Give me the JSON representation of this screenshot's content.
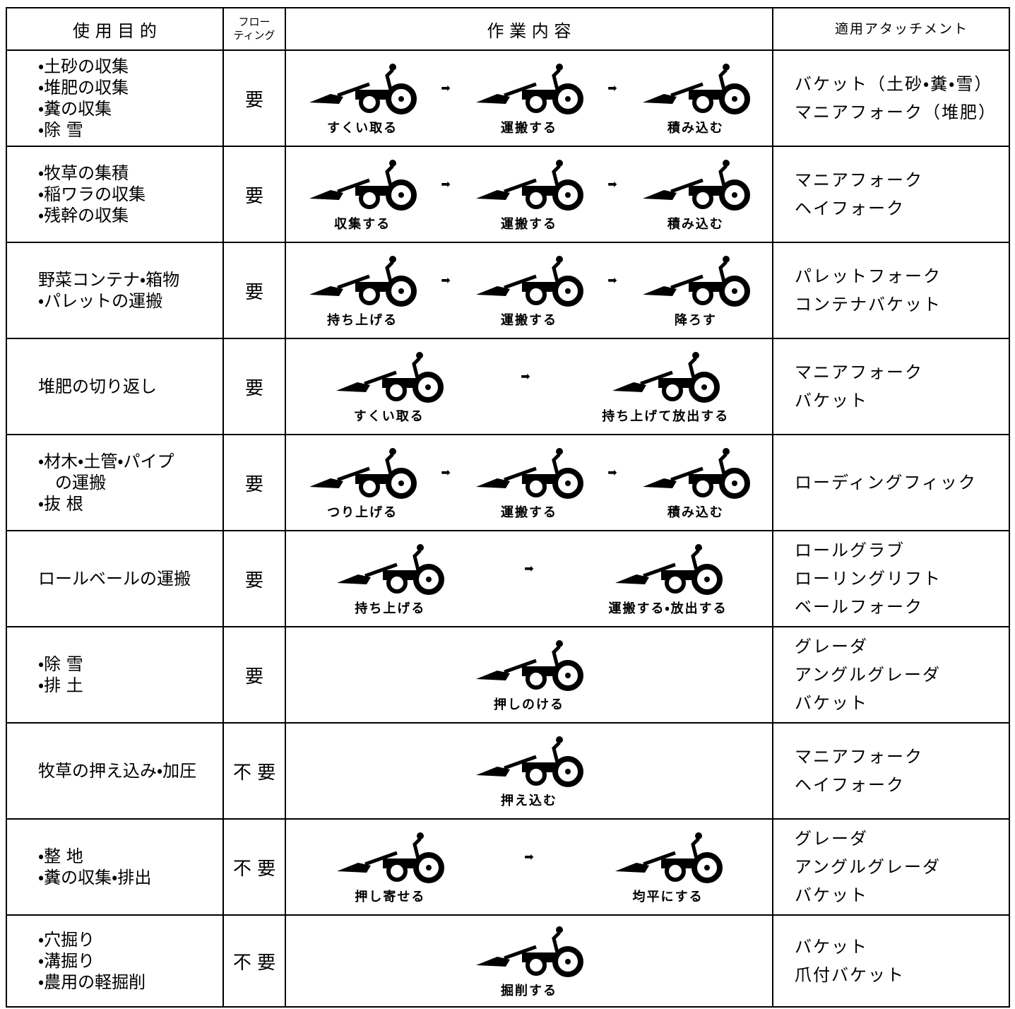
{
  "table": {
    "header": [
      [
        "使 用 目 的"
      ],
      [
        "フロー",
        "ティング"
      ],
      [
        "作 業 内 容"
      ],
      [
        "適用アタッチメント"
      ]
    ],
    "rows": [
      {
        "purpose": [
          "・土砂の収集",
          "・堆肥の収集",
          "・糞の収集",
          "・除 雪"
        ],
        "floating": "要",
        "steps": [
          "すくい取る",
          "運搬する",
          "積み込む"
        ],
        "attachments": [
          "バケット（土砂・糞・雪）",
          "マニアフォーク（堆肥）"
        ]
      },
      {
        "purpose": [
          "・牧草の集積",
          "・稲ワラの収集",
          "・残幹の収集"
        ],
        "floating": "要",
        "steps": [
          "収集する",
          "運搬する",
          "積み込む"
        ],
        "attachments": [
          "マニアフォーク",
          "ヘイフォーク"
        ]
      },
      {
        "purpose": [
          "野菜コンテナ・箱物",
          "・パレットの運搬"
        ],
        "floating": "要",
        "steps": [
          "持ち上げる",
          "運搬する",
          "降ろす"
        ],
        "attachments": [
          "パレットフォーク",
          "コンテナバケット"
        ]
      },
      {
        "purpose": [
          "堆肥の切り返し"
        ],
        "floating": "要",
        "steps": [
          "すくい取る",
          "持ち上げて放出する"
        ],
        "attachments": [
          "マニアフォーク",
          "バケット"
        ]
      },
      {
        "purpose": [
          "・材木・土管・パイプ",
          "　の運搬",
          "・抜 根"
        ],
        "floating": "要",
        "steps": [
          "つり上げる",
          "運搬する",
          "積み込む"
        ],
        "attachments": [
          "ローディングフィック"
        ]
      },
      {
        "purpose": [
          "ロールベールの運搬"
        ],
        "floating": "要",
        "steps": [
          "持ち上げる",
          "運搬する・放出する"
        ],
        "attachments": [
          "ロールグラブ",
          "ローリングリフト",
          "ベールフォーク"
        ]
      },
      {
        "purpose": [
          "・除 雪",
          "・排 土"
        ],
        "floating": "要",
        "steps": [
          "押しのける"
        ],
        "attachments": [
          "グレーダ",
          "アングルグレーダ",
          "バケット"
        ]
      },
      {
        "purpose": [
          "牧草の押え込み・加圧"
        ],
        "floating": "不 要",
        "steps": [
          "押え込む"
        ],
        "attachments": [
          "マニアフォーク",
          "ヘイフォーク"
        ]
      },
      {
        "purpose": [
          "・整 地",
          "・糞の収集・排出"
        ],
        "floating": "不 要",
        "steps": [
          "押し寄せる",
          "均平にする"
        ],
        "attachments": [
          "グレーダ",
          "アングルグレーダ",
          "バケット"
        ]
      },
      {
        "purpose": [
          "・穴掘り",
          "・溝掘り",
          "・農用の軽掘削"
        ],
        "floating": "不 要",
        "steps": [
          "掘削する"
        ],
        "attachments": [
          "バケット",
          "爪付バケット"
        ]
      }
    ]
  }
}
